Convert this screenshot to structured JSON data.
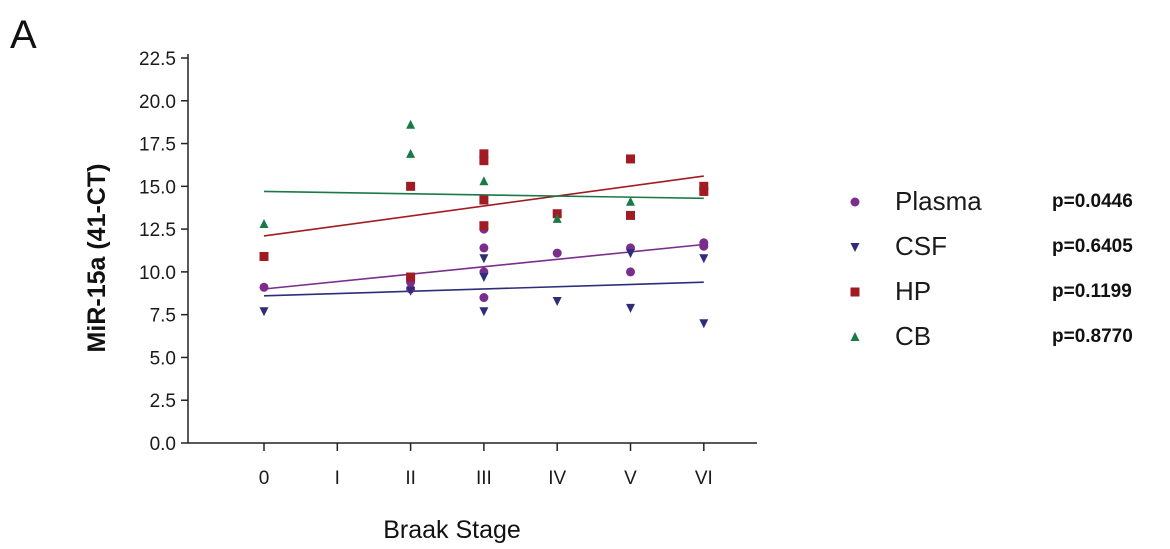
{
  "panel_label": "A",
  "chart_data": {
    "type": "scatter",
    "xlabel": "Braak Stage",
    "ylabel": "MiR-15a (41-CT)",
    "categories": [
      "0",
      "I",
      "II",
      "III",
      "IV",
      "V",
      "VI"
    ],
    "ylim": [
      0,
      22.5
    ],
    "yticks": [
      "0.0",
      "2.5",
      "5.0",
      "7.5",
      "10.0",
      "12.5",
      "15.0",
      "17.5",
      "20.0",
      "22.5"
    ],
    "legend_position": "right",
    "series": [
      {
        "name": "Plasma",
        "marker": "circle",
        "color": "#7b2d8e",
        "p_value": "p=0.0446",
        "points": [
          [
            0,
            9.1
          ],
          [
            2,
            9.0
          ],
          [
            2,
            9.4
          ],
          [
            2,
            9.6
          ],
          [
            3,
            8.5
          ],
          [
            3,
            10.0
          ],
          [
            3,
            11.4
          ],
          [
            3,
            12.5
          ],
          [
            4,
            11.1
          ],
          [
            5,
            10.0
          ],
          [
            5,
            11.4
          ],
          [
            6,
            11.5
          ],
          [
            6,
            11.7
          ]
        ],
        "trend": [
          [
            0,
            9.0
          ],
          [
            6,
            11.6
          ]
        ]
      },
      {
        "name": "CSF",
        "marker": "triangle-down",
        "color": "#2d2d7a",
        "p_value": "p=0.6405",
        "points": [
          [
            0,
            7.7
          ],
          [
            2,
            8.9
          ],
          [
            3,
            7.7
          ],
          [
            3,
            9.7
          ],
          [
            3,
            10.8
          ],
          [
            4,
            8.3
          ],
          [
            5,
            7.9
          ],
          [
            5,
            11.1
          ],
          [
            6,
            7.0
          ],
          [
            6,
            10.8
          ]
        ],
        "trend": [
          [
            0,
            8.6
          ],
          [
            6,
            9.4
          ]
        ]
      },
      {
        "name": "HP",
        "marker": "square",
        "color": "#a01c22",
        "p_value": "p=0.1199",
        "points": [
          [
            0,
            10.9
          ],
          [
            2,
            9.7
          ],
          [
            2,
            15.0
          ],
          [
            3,
            12.7
          ],
          [
            3,
            14.2
          ],
          [
            3,
            16.5
          ],
          [
            3,
            16.9
          ],
          [
            4,
            13.4
          ],
          [
            5,
            13.3
          ],
          [
            5,
            16.6
          ],
          [
            6,
            14.7
          ],
          [
            6,
            15.0
          ]
        ],
        "trend": [
          [
            0,
            12.1
          ],
          [
            6,
            15.6
          ]
        ]
      },
      {
        "name": "CB",
        "marker": "triangle-up",
        "color": "#1a7a45",
        "p_value": "p=0.8770",
        "points": [
          [
            0,
            12.8
          ],
          [
            2,
            16.9
          ],
          [
            2,
            18.6
          ],
          [
            3,
            15.3
          ],
          [
            4,
            13.1
          ],
          [
            5,
            14.1
          ]
        ],
        "trend": [
          [
            0,
            14.7
          ],
          [
            6,
            14.3
          ]
        ]
      }
    ]
  }
}
